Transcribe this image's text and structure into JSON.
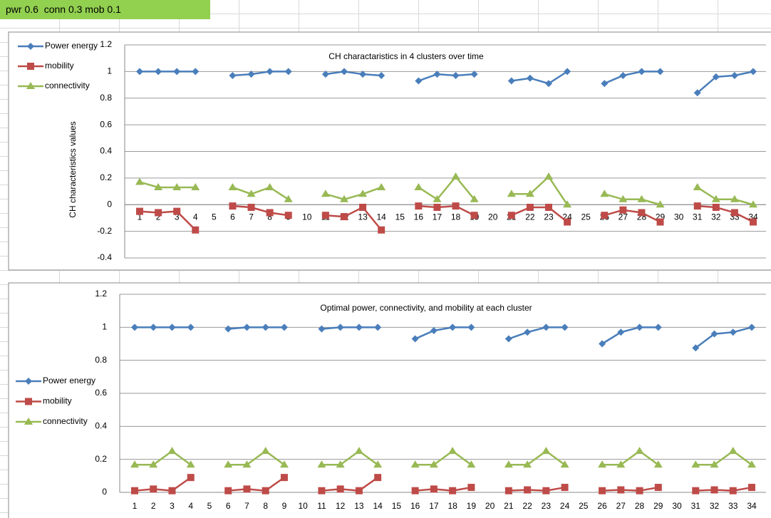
{
  "header": {
    "cell": "pwr 0.6  conn 0.3 mob 0.1"
  },
  "chart_data": [
    {
      "type": "line",
      "title": "CH charactaristics in 4 clusters over time",
      "y_label": "CH characteristics values",
      "categories": [
        1,
        2,
        3,
        4,
        5,
        6,
        7,
        8,
        9,
        10,
        11,
        12,
        13,
        14,
        15,
        16,
        17,
        18,
        19,
        20,
        21,
        22,
        23,
        24,
        25,
        26,
        27,
        28,
        29,
        30,
        31,
        32,
        33,
        34
      ],
      "ylim": [
        -0.4,
        1.2
      ],
      "yticks": [
        -0.4,
        -0.2,
        0,
        0.2,
        0.4,
        0.6,
        0.8,
        1,
        1.2
      ],
      "grid": true,
      "legend": "top-left",
      "series": [
        {
          "name": "Power energy",
          "color": "#4a7ebb",
          "marker": "diamond",
          "values": [
            1,
            1,
            1,
            1,
            null,
            0.97,
            0.98,
            1,
            1,
            null,
            0.98,
            1,
            0.98,
            0.97,
            null,
            0.93,
            0.98,
            0.97,
            0.98,
            null,
            0.93,
            0.95,
            0.91,
            1,
            null,
            0.91,
            0.97,
            1,
            1,
            null,
            0.84,
            0.96,
            0.97,
            1
          ]
        },
        {
          "name": "mobility",
          "color": "#be4b48",
          "marker": "square",
          "values": [
            -0.05,
            -0.06,
            -0.05,
            -0.19,
            null,
            -0.01,
            -0.02,
            -0.06,
            -0.08,
            null,
            -0.08,
            -0.09,
            -0.02,
            -0.19,
            null,
            -0.01,
            -0.02,
            -0.01,
            -0.08,
            null,
            -0.08,
            -0.02,
            -0.02,
            -0.13,
            null,
            -0.08,
            -0.04,
            -0.06,
            -0.13,
            null,
            -0.01,
            -0.02,
            -0.06,
            -0.13
          ]
        },
        {
          "name": "connectivity",
          "color": "#98b954",
          "marker": "triangle",
          "values": [
            0.17,
            0.13,
            0.13,
            0.13,
            null,
            0.13,
            0.08,
            0.13,
            0.04,
            null,
            0.08,
            0.04,
            0.08,
            0.13,
            null,
            0.13,
            0.04,
            0.21,
            0.04,
            null,
            0.08,
            0.08,
            0.21,
            0,
            null,
            0.08,
            0.04,
            0.04,
            0,
            null,
            0.13,
            0.04,
            0.04,
            0
          ]
        }
      ]
    },
    {
      "type": "line",
      "title": "Optimal power, connectivity, and mobility at each cluster",
      "categories": [
        1,
        2,
        3,
        4,
        5,
        6,
        7,
        8,
        9,
        10,
        11,
        12,
        13,
        14,
        15,
        16,
        17,
        18,
        19,
        20,
        21,
        22,
        23,
        24,
        25,
        26,
        27,
        28,
        29,
        30,
        31,
        32,
        33,
        34
      ],
      "ylim": [
        0,
        1.2
      ],
      "yticks": [
        0,
        0.2,
        0.4,
        0.6,
        0.8,
        1,
        1.2
      ],
      "grid": true,
      "legend": "left",
      "series": [
        {
          "name": "Power energy",
          "color": "#4a7ebb",
          "marker": "diamond",
          "values": [
            1,
            1,
            1,
            1,
            null,
            0.99,
            1,
            1,
            1,
            null,
            0.99,
            1,
            1,
            1,
            null,
            0.93,
            0.98,
            1,
            1,
            null,
            0.93,
            0.97,
            1,
            1,
            null,
            0.9,
            0.97,
            1,
            1,
            null,
            0.875,
            0.96,
            0.97,
            1
          ]
        },
        {
          "name": "mobility",
          "color": "#be4b48",
          "marker": "square",
          "values": [
            0.01,
            0.02,
            0.01,
            0.09,
            null,
            0.01,
            0.02,
            0.01,
            0.09,
            null,
            0.01,
            0.02,
            0.01,
            0.09,
            null,
            0.01,
            0.02,
            0.01,
            0.03,
            null,
            0.01,
            0.015,
            0.01,
            0.03,
            null,
            0.01,
            0.015,
            0.01,
            0.03,
            null,
            0.01,
            0.015,
            0.01,
            0.03
          ]
        },
        {
          "name": "connectivity",
          "color": "#98b954",
          "marker": "triangle",
          "values": [
            0.167,
            0.167,
            0.25,
            0.167,
            null,
            0.167,
            0.167,
            0.25,
            0.167,
            null,
            0.167,
            0.167,
            0.25,
            0.167,
            null,
            0.167,
            0.167,
            0.25,
            0.167,
            null,
            0.167,
            0.167,
            0.25,
            0.167,
            null,
            0.167,
            0.167,
            0.25,
            0.167,
            null,
            0.167,
            0.167,
            0.25,
            0.167
          ]
        }
      ]
    }
  ]
}
